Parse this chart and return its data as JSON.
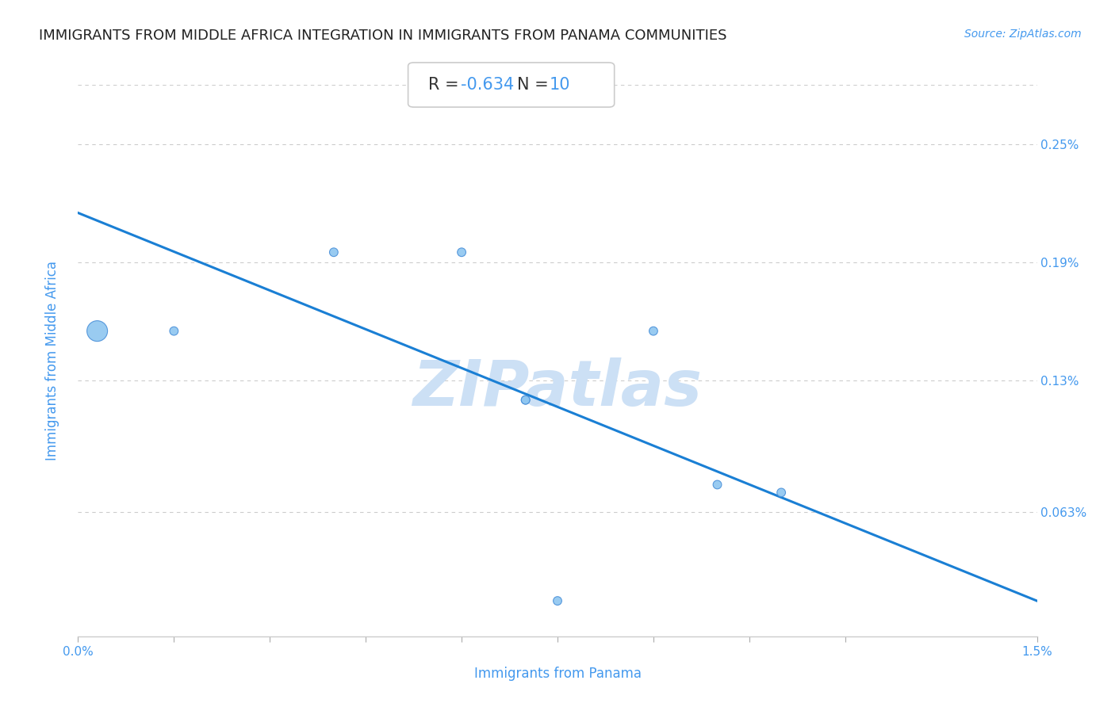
{
  "title": "IMMIGRANTS FROM MIDDLE AFRICA INTEGRATION IN IMMIGRANTS FROM PANAMA COMMUNITIES",
  "source": "Source: ZipAtlas.com",
  "xlabel": "Immigrants from Panama",
  "ylabel": "Immigrants from Middle Africa",
  "R": -0.634,
  "N": 10,
  "x_min": 0.0,
  "x_max": 0.015,
  "y_min": 0.0,
  "y_max": 0.0028,
  "x_ticks": [
    0.0,
    0.0015,
    0.003,
    0.0045,
    0.006,
    0.0075,
    0.009,
    0.0105,
    0.012,
    0.015
  ],
  "y_ticks": [
    0.00063,
    0.0013,
    0.0019,
    0.0025
  ],
  "y_tick_labels": [
    "0.063%",
    "0.13%",
    "0.19%",
    "0.25%"
  ],
  "scatter_x": [
    0.0003,
    0.0015,
    0.004,
    0.006,
    0.007,
    0.009,
    0.007,
    0.01,
    0.011,
    0.0075
  ],
  "scatter_y": [
    0.00155,
    0.00155,
    0.00195,
    0.00195,
    0.0012,
    0.00155,
    0.0012,
    0.00077,
    0.00073,
    0.00018
  ],
  "scatter_sizes": [
    350,
    60,
    60,
    60,
    60,
    60,
    60,
    60,
    60,
    60
  ],
  "scatter_color": "#8ec6f0",
  "scatter_edge_color": "#4a90d9",
  "line_color": "#1a7fd4",
  "line_start_x": 0.0,
  "line_start_y": 0.00215,
  "line_end_x": 0.015,
  "line_end_y": 0.00018,
  "watermark": "ZIPatlas",
  "watermark_color": "#cce0f5",
  "background_color": "#ffffff",
  "grid_color": "#cccccc",
  "title_color": "#222222",
  "axis_color": "#4499ee",
  "tick_color": "#4499ee",
  "stat_R_color": "#333333",
  "stat_N_color": "#4499ee",
  "title_fontsize": 13,
  "axis_label_fontsize": 12,
  "tick_fontsize": 11,
  "stat_fontsize": 15
}
